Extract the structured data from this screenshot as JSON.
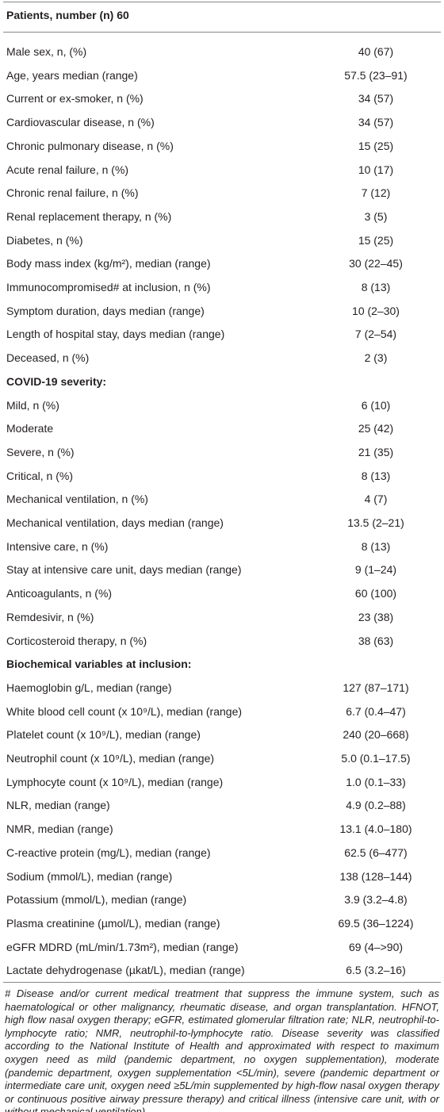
{
  "table": {
    "header": "Patients, number (n) 60",
    "rows": [
      {
        "label": "Male sex, n, (%)",
        "value": "40 (67)"
      },
      {
        "label": "Age, years median (range)",
        "value": "57.5 (23–91)"
      },
      {
        "label": "Current or ex-smoker, n (%)",
        "value": "34 (57)"
      },
      {
        "label": "Cardiovascular disease, n (%)",
        "value": "34 (57)"
      },
      {
        "label": "Chronic pulmonary disease, n (%)",
        "value": "15 (25)"
      },
      {
        "label": "Acute renal failure, n (%)",
        "value": "10 (17)"
      },
      {
        "label": "Chronic renal failure, n (%)",
        "value": "7 (12)"
      },
      {
        "label": "Renal replacement therapy, n (%)",
        "value": "3 (5)"
      },
      {
        "label": "Diabetes, n (%)",
        "value": "15 (25)"
      },
      {
        "label": "Body mass index (kg/m²), median (range)",
        "value": "30 (22–45)"
      },
      {
        "label": "Immunocompromised# at inclusion, n (%)",
        "value": "8 (13)"
      },
      {
        "label": "Symptom duration, days median (range)",
        "value": "10 (2–30)"
      },
      {
        "label": "Length of hospital stay, days median (range)",
        "value": "7 (2–54)"
      },
      {
        "label": "Deceased, n (%)",
        "value": "2 (3)"
      }
    ],
    "sections": [
      {
        "title": "COVID-19 severity:",
        "rows": [
          {
            "label": "Mild, n (%)",
            "value": "6 (10)"
          },
          {
            "label": "Moderate",
            "value": "25 (42)"
          },
          {
            "label": "Severe, n (%)",
            "value": "21 (35)"
          },
          {
            "label": "Critical, n (%)",
            "value": "8 (13)"
          },
          {
            "label": "Mechanical ventilation, n (%)",
            "value": "4 (7)"
          },
          {
            "label": "Mechanical ventilation, days median (range)",
            "value": "13.5 (2–21)"
          },
          {
            "label": "Intensive care, n (%)",
            "value": "8 (13)"
          },
          {
            "label": "Stay at intensive care unit, days median (range)",
            "value": "9 (1–24)"
          },
          {
            "label": "Anticoagulants, n (%)",
            "value": "60 (100)"
          },
          {
            "label": "Remdesivir, n (%)",
            "value": "23 (38)"
          },
          {
            "label": "Corticosteroid therapy, n (%)",
            "value": "38 (63)"
          }
        ]
      },
      {
        "title": "Biochemical variables at inclusion:",
        "rows": [
          {
            "label": "Haemoglobin g/L, median (range)",
            "value": "127 (87–171)"
          },
          {
            "label": "White blood cell count (x 10⁹/L), median (range)",
            "value": "6.7 (0.4–47)"
          },
          {
            "label": "Platelet count (x 10⁹/L), median (range)",
            "value": "240 (20–668)"
          },
          {
            "label": "Neutrophil count (x 10⁹/L), median (range)",
            "value": "5.0 (0.1–17.5)"
          },
          {
            "label": "Lymphocyte count (x 10⁹/L), median (range)",
            "value": "1.0 (0.1–33)"
          },
          {
            "label": "NLR, median (range)",
            "value": "4.9 (0.2–88)"
          },
          {
            "label": "NMR, median (range)",
            "value": "13.1 (4.0–180)"
          },
          {
            "label": "C-reactive protein (mg/L), median (range)",
            "value": "62.5 (6–477)"
          },
          {
            "label": "Sodium (mmol/L), median (range)",
            "value": "138 (128–144)"
          },
          {
            "label": "Potassium (mmol/L), median (range)",
            "value": "3.9 (3.2–4.8)"
          },
          {
            "label": "Plasma creatinine (µmol/L), median (range)",
            "value": "69.5 (36–1224)"
          },
          {
            "label": "eGFR MDRD (mL/min/1.73m²), median (range)",
            "value": "69 (4–>90)"
          },
          {
            "label": "Lactate dehydrogenase (µkat/L), median (range)",
            "value": "6.5 (3.2–16)"
          }
        ]
      }
    ],
    "footnote": "# Disease and/or current medical treatment that suppress the immune system, such as haematological or other malignancy, rheumatic disease, and organ transplantation. HFNOT, high flow nasal oxygen therapy; eGFR, estimated glomerular filtration rate; NLR, neutrophil-to-lymphocyte ratio; NMR, neutrophil-to-lymphocyte ratio. Disease severity was classified according to the National Institute of Health and approximated with respect to maximum oxygen need as mild (pandemic department, no oxygen supplementation), moderate (pandemic department, oxygen supplementation <5L/min), severe (pandemic department or intermediate care unit, oxygen need ≥5L/min supplemented by high-flow nasal oxygen therapy or continuous positive airway pressure therapy) and critical illness (intensive care unit, with or without mechanical ventilation)."
  }
}
